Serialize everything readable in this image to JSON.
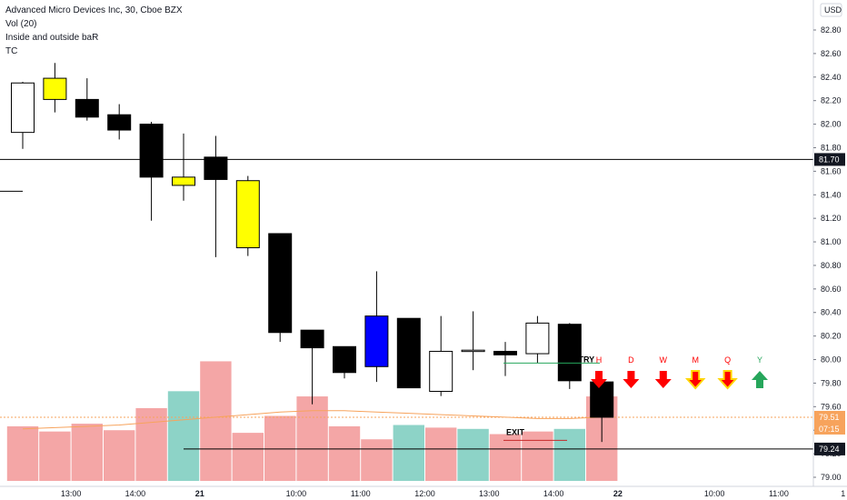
{
  "legend": {
    "title": "Advanced Micro Devices Inc, 30, Cboe BZX",
    "indicators": [
      "Vol (20)",
      "Inside and outside baR",
      "TC"
    ]
  },
  "currency_label": "USD",
  "colors": {
    "bull_yellow": "#ffff00",
    "bear_black": "#000000",
    "blue_bar": "#0000ff",
    "hollow": "#ffffff",
    "vol_red": "#f4a6a6",
    "vol_teal": "#8dd3c7",
    "vol_ma": "#f7a35c",
    "arrow_red": "#ff0000",
    "arrow_green": "#26a65b",
    "letter_red": "#ff0000",
    "letter_green": "#26a65b",
    "badge_dark": "#131722",
    "badge_orange": "#f7a35c"
  },
  "chart_data": {
    "type": "candlestick",
    "title": "Advanced Micro Devices Inc, 30, Cboe BZX",
    "y_axis": {
      "ticks": [
        "83.00",
        "82.80",
        "82.60",
        "82.40",
        "82.20",
        "82.00",
        "81.80",
        "81.60",
        "81.40",
        "81.20",
        "81.00",
        "80.80",
        "80.60",
        "80.40",
        "80.20",
        "80.00",
        "79.80",
        "79.60",
        "79.40",
        "79.20",
        "79.00"
      ],
      "range": [
        78.97,
        83.03
      ]
    },
    "x_axis": {
      "ticks": [
        {
          "label": "13:00",
          "bar": 1.5,
          "bold": false
        },
        {
          "label": "14:00",
          "bar": 3.5,
          "bold": false
        },
        {
          "label": "21",
          "bar": 5.5,
          "bold": true
        },
        {
          "label": "10:00",
          "bar": 8.5,
          "bold": false
        },
        {
          "label": "11:00",
          "bar": 10.5,
          "bold": false
        },
        {
          "label": "12:00",
          "bar": 12.5,
          "bold": false
        },
        {
          "label": "13:00",
          "bar": 14.5,
          "bold": false
        },
        {
          "label": "14:00",
          "bar": 16.5,
          "bold": false
        },
        {
          "label": "22",
          "bar": 18.5,
          "bold": true
        },
        {
          "label": "10:00",
          "bar": 21.5,
          "bold": false
        },
        {
          "label": "11:00",
          "bar": 23.5,
          "bold": false
        },
        {
          "label": "1",
          "bar": 25.5,
          "bold": false
        }
      ]
    },
    "candles": [
      {
        "open": 81.93,
        "high": 82.36,
        "low": 81.79,
        "close": 82.35,
        "style": "hollow"
      },
      {
        "open": 82.21,
        "high": 82.52,
        "low": 82.1,
        "close": 82.39,
        "style": "yellow"
      },
      {
        "open": 82.21,
        "high": 82.39,
        "low": 82.03,
        "close": 82.06,
        "style": "black"
      },
      {
        "open": 82.08,
        "high": 82.17,
        "low": 81.87,
        "close": 81.95,
        "style": "black"
      },
      {
        "open": 82.0,
        "high": 82.02,
        "low": 81.18,
        "close": 81.55,
        "style": "black"
      },
      {
        "open": 81.48,
        "high": 81.92,
        "low": 81.35,
        "close": 81.55,
        "style": "yellow"
      },
      {
        "open": 81.72,
        "high": 81.9,
        "low": 80.87,
        "close": 81.53,
        "style": "black"
      },
      {
        "open": 80.95,
        "high": 81.56,
        "low": 80.88,
        "close": 81.52,
        "style": "yellow"
      },
      {
        "open": 81.07,
        "high": 81.07,
        "low": 80.15,
        "close": 80.23,
        "style": "black"
      },
      {
        "open": 80.25,
        "high": 80.25,
        "low": 79.62,
        "close": 80.1,
        "style": "black"
      },
      {
        "open": 80.11,
        "high": 80.11,
        "low": 79.84,
        "close": 79.89,
        "style": "black"
      },
      {
        "open": 79.94,
        "high": 80.75,
        "low": 79.81,
        "close": 80.37,
        "style": "blue"
      },
      {
        "open": 80.35,
        "high": 80.35,
        "low": 79.76,
        "close": 79.76,
        "style": "black"
      },
      {
        "open": 79.73,
        "high": 80.37,
        "low": 79.69,
        "close": 80.07,
        "style": "hollow"
      },
      {
        "open": 80.07,
        "high": 80.41,
        "low": 79.91,
        "close": 80.08,
        "style": "hollow"
      },
      {
        "open": 80.07,
        "high": 80.15,
        "low": 79.86,
        "close": 80.04,
        "style": "black"
      },
      {
        "open": 80.05,
        "high": 80.37,
        "low": 79.97,
        "close": 80.31,
        "style": "hollow"
      },
      {
        "open": 80.3,
        "high": 80.31,
        "low": 79.75,
        "close": 79.82,
        "style": "black"
      },
      {
        "open": 79.81,
        "high": 79.83,
        "low": 79.3,
        "close": 79.51,
        "style": "black"
      }
    ],
    "volume": [
      {
        "h": 0.42,
        "color": "red"
      },
      {
        "h": 0.38,
        "color": "red"
      },
      {
        "h": 0.44,
        "color": "red"
      },
      {
        "h": 0.39,
        "color": "red"
      },
      {
        "h": 0.56,
        "color": "red"
      },
      {
        "h": 0.69,
        "color": "teal"
      },
      {
        "h": 0.92,
        "color": "red"
      },
      {
        "h": 0.37,
        "color": "red"
      },
      {
        "h": 0.5,
        "color": "red"
      },
      {
        "h": 0.65,
        "color": "red"
      },
      {
        "h": 0.42,
        "color": "red"
      },
      {
        "h": 0.32,
        "color": "red"
      },
      {
        "h": 0.43,
        "color": "teal"
      },
      {
        "h": 0.41,
        "color": "red"
      },
      {
        "h": 0.4,
        "color": "teal"
      },
      {
        "h": 0.36,
        "color": "red"
      },
      {
        "h": 0.38,
        "color": "red"
      },
      {
        "h": 0.4,
        "color": "teal"
      },
      {
        "h": 0.65,
        "color": "red"
      }
    ],
    "volume_ma": [
      0.4,
      0.41,
      0.42,
      0.43,
      0.45,
      0.47,
      0.49,
      0.51,
      0.53,
      0.54,
      0.54,
      0.53,
      0.52,
      0.51,
      0.5,
      0.49,
      0.48,
      0.48,
      0.49
    ],
    "horizontal_lines": [
      {
        "value": 81.7,
        "label": "81.70",
        "badge": "dark"
      },
      {
        "value": 79.24,
        "label": "79.24",
        "badge": "dark"
      }
    ],
    "level_badges": [
      {
        "value": 79.51,
        "label": "79.51",
        "sublabel": "07:15",
        "badge": "orange"
      }
    ],
    "annotations": [
      {
        "text": "ENTRY",
        "price": 79.96
      },
      {
        "text": "EXIT",
        "price": 79.36
      }
    ],
    "timeframe_signals": [
      {
        "letter": "H",
        "direction": "down",
        "style": "red"
      },
      {
        "letter": "D",
        "direction": "down",
        "style": "red"
      },
      {
        "letter": "W",
        "direction": "down",
        "style": "red"
      },
      {
        "letter": "M",
        "direction": "down",
        "style": "red-yellow"
      },
      {
        "letter": "Q",
        "direction": "down",
        "style": "red-yellow"
      },
      {
        "letter": "Y",
        "direction": "up",
        "style": "green"
      }
    ]
  }
}
